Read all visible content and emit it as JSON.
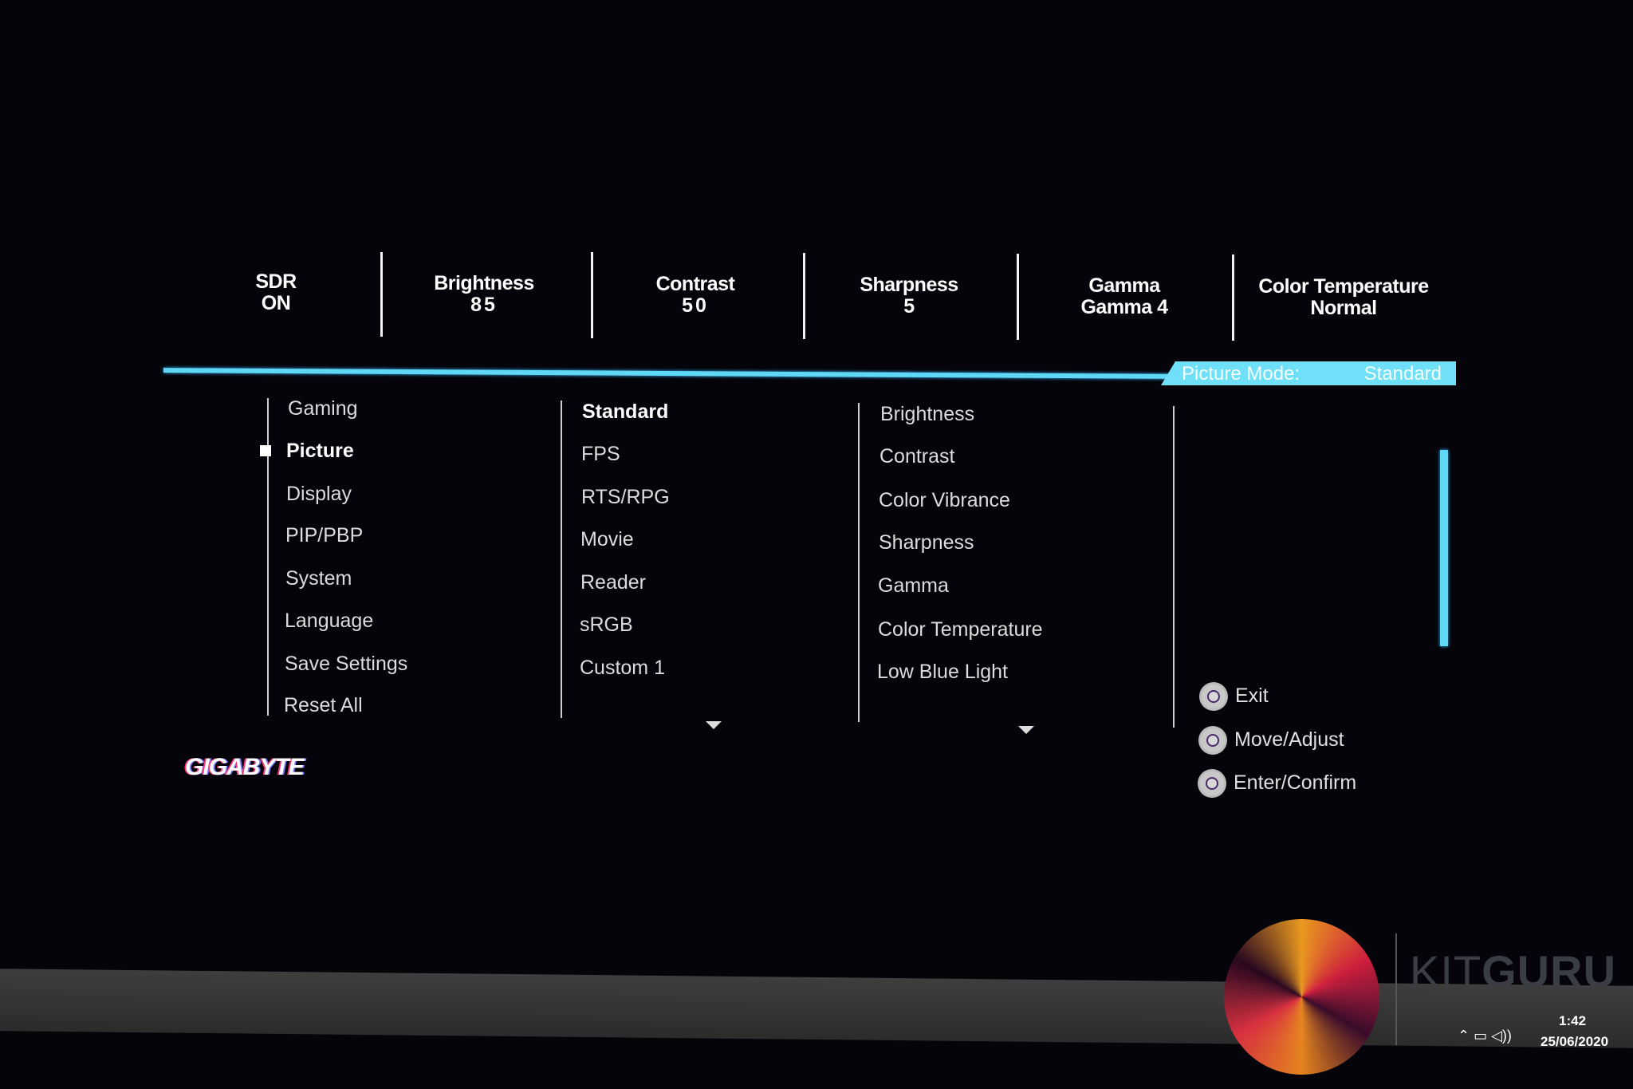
{
  "status_bar": [
    {
      "label": "SDR",
      "value": "ON"
    },
    {
      "label": "Brightness",
      "value": "85"
    },
    {
      "label": "Contrast",
      "value": "50"
    },
    {
      "label": "Sharpness",
      "value": "5"
    },
    {
      "label": "Gamma",
      "value": "Gamma 4"
    },
    {
      "label": "Color Temperature",
      "value": "Normal"
    }
  ],
  "picture_mode": {
    "label": "Picture Mode:",
    "value": "Standard"
  },
  "main_menu": [
    "Gaming",
    "Picture",
    "Display",
    "PIP/PBP",
    "System",
    "Language",
    "Save Settings",
    "Reset All"
  ],
  "main_menu_selected": "Picture",
  "picture_modes": [
    "Standard",
    "FPS",
    "RTS/RPG",
    "Movie",
    "Reader",
    "sRGB",
    "Custom 1"
  ],
  "picture_modes_selected": "Standard",
  "settings": [
    "Brightness",
    "Contrast",
    "Color Vibrance",
    "Sharpness",
    "Gamma",
    "Color Temperature",
    "Low Blue Light"
  ],
  "help": [
    {
      "icon": "joystick-icon",
      "label": "Exit"
    },
    {
      "icon": "joystick-icon",
      "label": "Move/Adjust"
    },
    {
      "icon": "joystick-icon",
      "label": "Enter/Confirm"
    }
  ],
  "brand_logo": "GIGABYTE",
  "watermark": {
    "light": "KIT",
    "bold": "GURU"
  },
  "taskbar": {
    "time": "1:42",
    "date": "25/06/2020"
  },
  "colors": {
    "accent": "#5fd8f5",
    "background": "#04040a"
  }
}
